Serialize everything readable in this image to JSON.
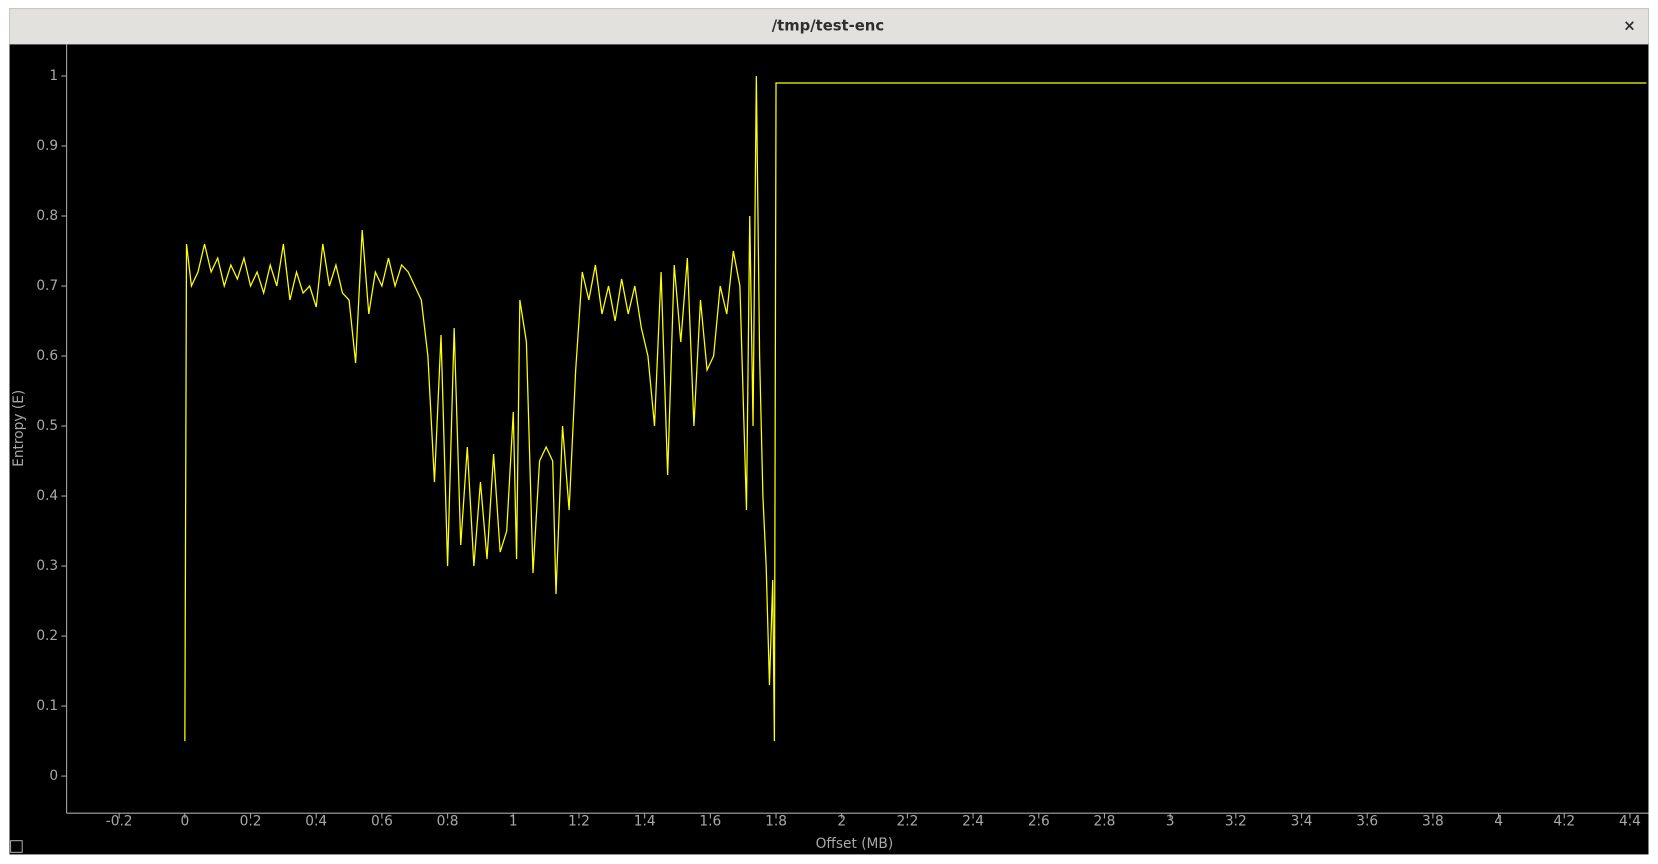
{
  "window": {
    "title": "/tmp/test-enc",
    "close": "×"
  },
  "chart_data": {
    "type": "line",
    "xlabel": "Offset (MB)",
    "ylabel": "Entropy (E)",
    "color": "#ffff00",
    "grid": false,
    "xlim": [
      -0.36,
      4.45
    ],
    "ylim": [
      -0.053,
      1.045
    ],
    "xticks": [
      -0.2,
      0,
      0.2,
      0.4,
      0.6,
      0.8,
      1,
      1.2,
      1.4,
      1.6,
      1.8,
      2,
      2.2,
      2.4,
      2.6,
      2.8,
      3,
      3.2,
      3.4,
      3.6,
      3.8,
      4,
      4.2,
      4.4
    ],
    "yticks": [
      0,
      0.1,
      0.2,
      0.3,
      0.4,
      0.5,
      0.6,
      0.7,
      0.8,
      0.9,
      1
    ],
    "x": [
      0,
      0.005,
      0.02,
      0.04,
      0.06,
      0.08,
      0.1,
      0.12,
      0.14,
      0.16,
      0.18,
      0.2,
      0.22,
      0.24,
      0.26,
      0.28,
      0.3,
      0.32,
      0.34,
      0.36,
      0.38,
      0.4,
      0.42,
      0.44,
      0.46,
      0.48,
      0.5,
      0.52,
      0.54,
      0.56,
      0.58,
      0.6,
      0.62,
      0.64,
      0.66,
      0.68,
      0.7,
      0.72,
      0.74,
      0.76,
      0.78,
      0.8,
      0.82,
      0.84,
      0.86,
      0.88,
      0.9,
      0.92,
      0.94,
      0.96,
      0.98,
      1.0,
      1.01,
      1.02,
      1.04,
      1.06,
      1.08,
      1.1,
      1.12,
      1.13,
      1.15,
      1.17,
      1.19,
      1.21,
      1.23,
      1.25,
      1.27,
      1.29,
      1.31,
      1.33,
      1.35,
      1.37,
      1.39,
      1.41,
      1.43,
      1.45,
      1.47,
      1.49,
      1.51,
      1.53,
      1.55,
      1.57,
      1.59,
      1.61,
      1.63,
      1.65,
      1.67,
      1.69,
      1.71,
      1.72,
      1.73,
      1.74,
      1.75,
      1.76,
      1.77,
      1.78,
      1.79,
      1.795,
      1.8,
      2.0,
      2.5,
      3.0,
      3.5,
      4.0,
      4.45
    ],
    "values": [
      0.05,
      0.76,
      0.7,
      0.72,
      0.76,
      0.72,
      0.74,
      0.7,
      0.73,
      0.71,
      0.74,
      0.7,
      0.72,
      0.69,
      0.73,
      0.7,
      0.76,
      0.68,
      0.72,
      0.69,
      0.7,
      0.67,
      0.76,
      0.7,
      0.73,
      0.69,
      0.68,
      0.59,
      0.78,
      0.66,
      0.72,
      0.7,
      0.74,
      0.7,
      0.73,
      0.72,
      0.7,
      0.68,
      0.6,
      0.42,
      0.63,
      0.3,
      0.64,
      0.33,
      0.47,
      0.3,
      0.42,
      0.31,
      0.46,
      0.32,
      0.35,
      0.52,
      0.31,
      0.68,
      0.62,
      0.29,
      0.45,
      0.47,
      0.45,
      0.26,
      0.5,
      0.38,
      0.58,
      0.72,
      0.68,
      0.73,
      0.66,
      0.7,
      0.65,
      0.71,
      0.66,
      0.7,
      0.64,
      0.6,
      0.5,
      0.72,
      0.43,
      0.73,
      0.62,
      0.74,
      0.5,
      0.68,
      0.58,
      0.6,
      0.7,
      0.66,
      0.75,
      0.7,
      0.38,
      0.8,
      0.5,
      1.0,
      0.6,
      0.4,
      0.3,
      0.13,
      0.28,
      0.05,
      0.99,
      0.99,
      0.99,
      0.99,
      0.99,
      0.99,
      0.99
    ]
  }
}
